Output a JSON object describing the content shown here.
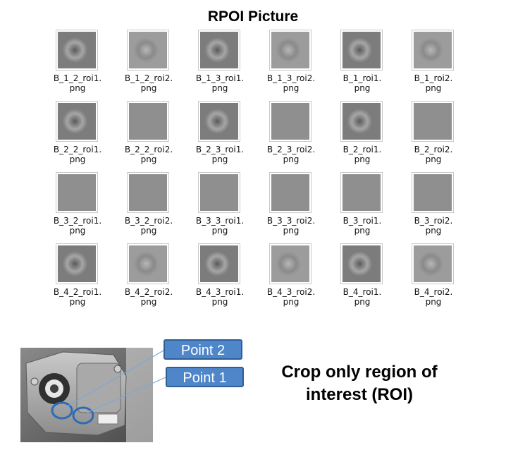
{
  "title": "RPOI Picture",
  "files": [
    {
      "line1": "B_1_2_roi1.",
      "line2": "png",
      "tone": "dark-blob"
    },
    {
      "line1": "B_1_2_roi2.",
      "line2": "png",
      "tone": "light-blob"
    },
    {
      "line1": "B_1_3_roi1.",
      "line2": "png",
      "tone": "dark-blob"
    },
    {
      "line1": "B_1_3_roi2.",
      "line2": "png",
      "tone": "light-blob"
    },
    {
      "line1": "B_1_roi1.",
      "line2": "png",
      "tone": "dark-blob"
    },
    {
      "line1": "B_1_roi2.",
      "line2": "png",
      "tone": "light-blob"
    },
    {
      "line1": "B_2_2_roi1.",
      "line2": "png",
      "tone": "dark-blob"
    },
    {
      "line1": "B_2_2_roi2.",
      "line2": "png",
      "tone": "flat"
    },
    {
      "line1": "B_2_3_roi1.",
      "line2": "png",
      "tone": "dark-blob"
    },
    {
      "line1": "B_2_3_roi2.",
      "line2": "png",
      "tone": "flat"
    },
    {
      "line1": "B_2_roi1.",
      "line2": "png",
      "tone": "dark-blob"
    },
    {
      "line1": "B_2_roi2.",
      "line2": "png",
      "tone": "flat"
    },
    {
      "line1": "B_3_2_roi1.",
      "line2": "png",
      "tone": "flat"
    },
    {
      "line1": "B_3_2_roi2.",
      "line2": "png",
      "tone": "flat"
    },
    {
      "line1": "B_3_3_roi1.",
      "line2": "png",
      "tone": "flat"
    },
    {
      "line1": "B_3_3_roi2.",
      "line2": "png",
      "tone": "flat"
    },
    {
      "line1": "B_3_roi1.",
      "line2": "png",
      "tone": "flat"
    },
    {
      "line1": "B_3_roi2.",
      "line2": "png",
      "tone": "flat"
    },
    {
      "line1": "B_4_2_roi1.",
      "line2": "png",
      "tone": "dark-blob"
    },
    {
      "line1": "B_4_2_roi2.",
      "line2": "png",
      "tone": "light-blob"
    },
    {
      "line1": "B_4_3_roi1.",
      "line2": "png",
      "tone": "dark-blob"
    },
    {
      "line1": "B_4_3_roi2.",
      "line2": "png",
      "tone": "light-blob"
    },
    {
      "line1": "B_4_roi1.",
      "line2": "png",
      "tone": "dark-blob"
    },
    {
      "line1": "B_4_roi2.",
      "line2": "png",
      "tone": "light-blob"
    }
  ],
  "callouts": {
    "point2": "Point 2",
    "point1": "Point 1"
  },
  "caption": {
    "line1": "Crop only region of",
    "line2": "interest (ROI)"
  },
  "colors": {
    "callout_fill": "#4e86c9",
    "callout_border": "#2e5f95",
    "leader_line": "#7fa7d6"
  }
}
